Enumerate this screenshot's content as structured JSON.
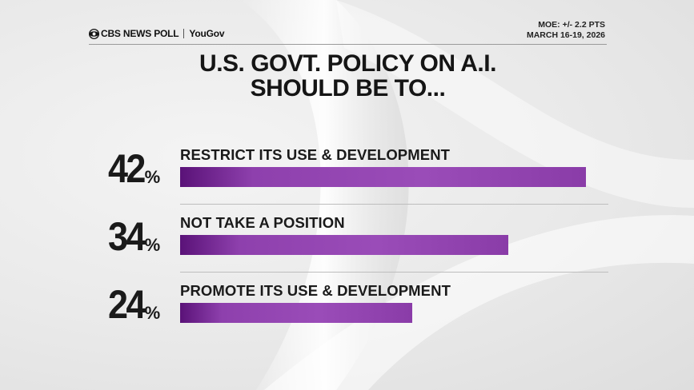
{
  "header": {
    "brand_name": "CBS NEWS POLL",
    "partner": "YouGov",
    "moe": "MOE: +/- 2.2 PTS",
    "dates": "MARCH 16-19, 2026"
  },
  "chart_data": {
    "type": "bar",
    "orientation": "horizontal",
    "title_lines": [
      "U.S. GOVT. POLICY ON A.I.",
      "SHOULD BE TO..."
    ],
    "categories": [
      "RESTRICT ITS USE & DEVELOPMENT",
      "NOT TAKE A POSITION",
      "PROMOTE ITS USE & DEVELOPMENT"
    ],
    "values": [
      42,
      34,
      24
    ],
    "value_labels": [
      "42",
      "34",
      "24"
    ],
    "unit": "%",
    "xlim": [
      0,
      42
    ],
    "bar_color": "#8e40ad",
    "grid": false,
    "legend": "none"
  }
}
